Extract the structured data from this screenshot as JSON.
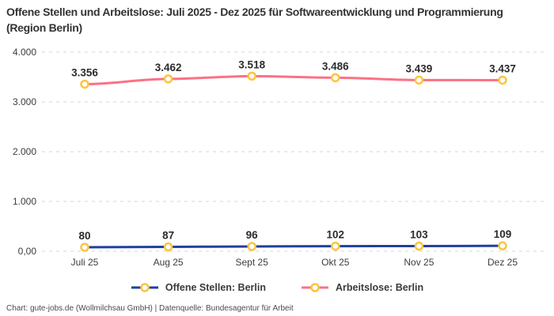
{
  "title": "Offene Stellen und Arbeitslose: Juli 2025 - Dez 2025 für Softwareentwicklung und Programmierung (Region Berlin)",
  "footer": "Chart: gute-jobs.de (Wollmilchsau GmbH) | Datenquelle: Bundesagentur für Arbeit",
  "chart_data": {
    "type": "line",
    "categories": [
      "Juli 25",
      "Aug 25",
      "Sept 25",
      "Okt 25",
      "Nov 25",
      "Dez 25"
    ],
    "series": [
      {
        "name": "Offene Stellen: Berlin",
        "values": [
          80,
          87,
          96,
          102,
          103,
          109
        ],
        "labels": [
          "80",
          "87",
          "96",
          "102",
          "103",
          "109"
        ],
        "color": "#203F9E"
      },
      {
        "name": "Arbeitslose: Berlin",
        "values": [
          3356,
          3462,
          3518,
          3486,
          3439,
          3437
        ],
        "labels": [
          "3.356",
          "3.462",
          "3.518",
          "3.486",
          "3.439",
          "3.437"
        ],
        "color": "#FB7185"
      }
    ],
    "marker_color": "#FCC43D",
    "marker_fill": "#FFFFFF",
    "grid": true,
    "grid_color": "#D6D6D6",
    "ylim": [
      0,
      4000
    ],
    "y_ticks": [
      {
        "value": 0,
        "label": "0,00"
      },
      {
        "value": 1000,
        "label": "1.000"
      },
      {
        "value": 2000,
        "label": "2.000"
      },
      {
        "value": 3000,
        "label": "3.000"
      },
      {
        "value": 4000,
        "label": "4.000"
      }
    ],
    "legend_position": "bottom"
  }
}
